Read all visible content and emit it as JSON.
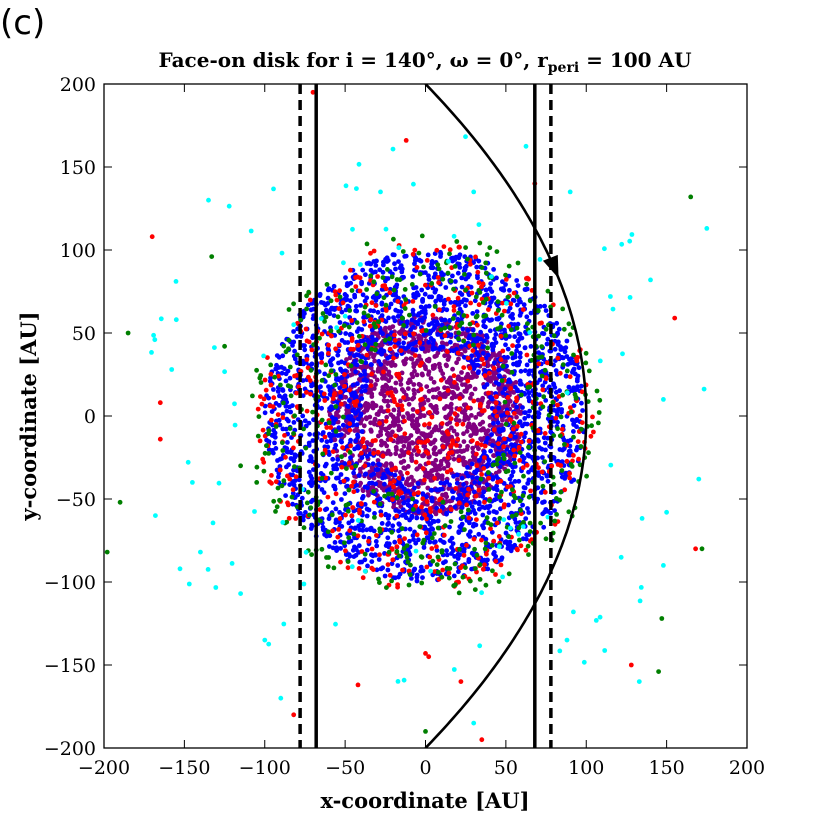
{
  "panel_label": "(c)",
  "chart_data": {
    "type": "scatter",
    "title": "Face-on disk for i = 140°, ω = 0°, r",
    "title_sub": "peri",
    "title_tail": " = 100 AU",
    "xlabel": "x-coordinate [AU]",
    "ylabel": "y-coordinate [AU]",
    "xlim": [
      -200,
      200
    ],
    "ylim": [
      -200,
      200
    ],
    "xticks": [
      -200,
      -150,
      -100,
      -50,
      0,
      50,
      100,
      150,
      200
    ],
    "yticks": [
      -200,
      -150,
      -100,
      -50,
      0,
      50,
      100,
      150,
      200
    ],
    "xtick_labels": [
      "−200",
      "−150",
      "−100",
      "−50",
      "0",
      "50",
      "100",
      "150",
      "200"
    ],
    "ytick_labels": [
      "−200",
      "−150",
      "−100",
      "−50",
      "0",
      "50",
      "100",
      "150",
      "200"
    ],
    "grid": false,
    "colors": {
      "purple": "#800080",
      "blue": "#0000ff",
      "red": "#ff0000",
      "green": "#007f00",
      "cyan": "#00ffff",
      "line": "#000000"
    },
    "series": [
      {
        "color": "purple",
        "distribution": "disk",
        "count": 1500,
        "r_max": 60
      },
      {
        "color": "blue",
        "distribution": "annulus",
        "count": 2200,
        "r_min": 40,
        "r_max": 100
      },
      {
        "color": "red",
        "distribution": "disk",
        "count": 600,
        "r_max": 105
      },
      {
        "color": "green",
        "distribution": "annulus",
        "count": 450,
        "r_min": 50,
        "r_max": 110
      },
      {
        "color": "cyan",
        "distribution": "annulus",
        "count": 90,
        "r_min": 75,
        "r_max": 180
      },
      {
        "color": "red",
        "distribution": "outlier",
        "points": [
          [
            -165,
            8
          ],
          [
            -165,
            -14
          ],
          [
            -170,
            108
          ],
          [
            -70,
            195
          ],
          [
            -12,
            166
          ],
          [
            68,
            140
          ],
          [
            155,
            59
          ],
          [
            168,
            -80
          ],
          [
            128,
            -150
          ],
          [
            -42,
            -162
          ],
          [
            22,
            -160
          ],
          [
            2,
            -145
          ],
          [
            35,
            -195
          ],
          [
            -82,
            -180
          ],
          [
            0,
            -143
          ]
        ]
      },
      {
        "color": "green",
        "distribution": "outlier",
        "points": [
          [
            -185,
            50
          ],
          [
            -190,
            -52
          ],
          [
            -198,
            -82
          ],
          [
            -133,
            96
          ],
          [
            -115,
            -30
          ],
          [
            -105,
            -40
          ],
          [
            165,
            132
          ],
          [
            172,
            -80
          ],
          [
            147,
            -122
          ],
          [
            145,
            -154
          ],
          [
            0,
            -190
          ],
          [
            -125,
            42
          ]
        ]
      },
      {
        "color": "cyan",
        "distribution": "outlier",
        "points": [
          [
            -135,
            130
          ],
          [
            -155,
            58
          ],
          [
            -145,
            -40
          ],
          [
            -168,
            -60
          ],
          [
            -140,
            -82
          ],
          [
            -115,
            -107
          ],
          [
            -100,
            -135
          ],
          [
            175,
            113
          ],
          [
            148,
            10
          ],
          [
            150,
            -58
          ],
          [
            170,
            -38
          ],
          [
            148,
            -90
          ],
          [
            133,
            -160
          ],
          [
            92,
            -118
          ],
          [
            88,
            -135
          ],
          [
            30,
            -185
          ],
          [
            -90,
            -170
          ],
          [
            90,
            135
          ],
          [
            -28,
            135
          ],
          [
            30,
            135
          ],
          [
            -82,
            55
          ],
          [
            140,
            82
          ],
          [
            115,
            72
          ]
        ]
      }
    ],
    "vertical_lines": [
      {
        "x": -78,
        "style": "dashed"
      },
      {
        "x": -68,
        "style": "solid"
      },
      {
        "x": 68,
        "style": "solid"
      },
      {
        "x": 78,
        "style": "dashed"
      }
    ],
    "orbit": {
      "r_peri": 100,
      "shape": "parabola",
      "arrow_at_y": 83
    }
  }
}
